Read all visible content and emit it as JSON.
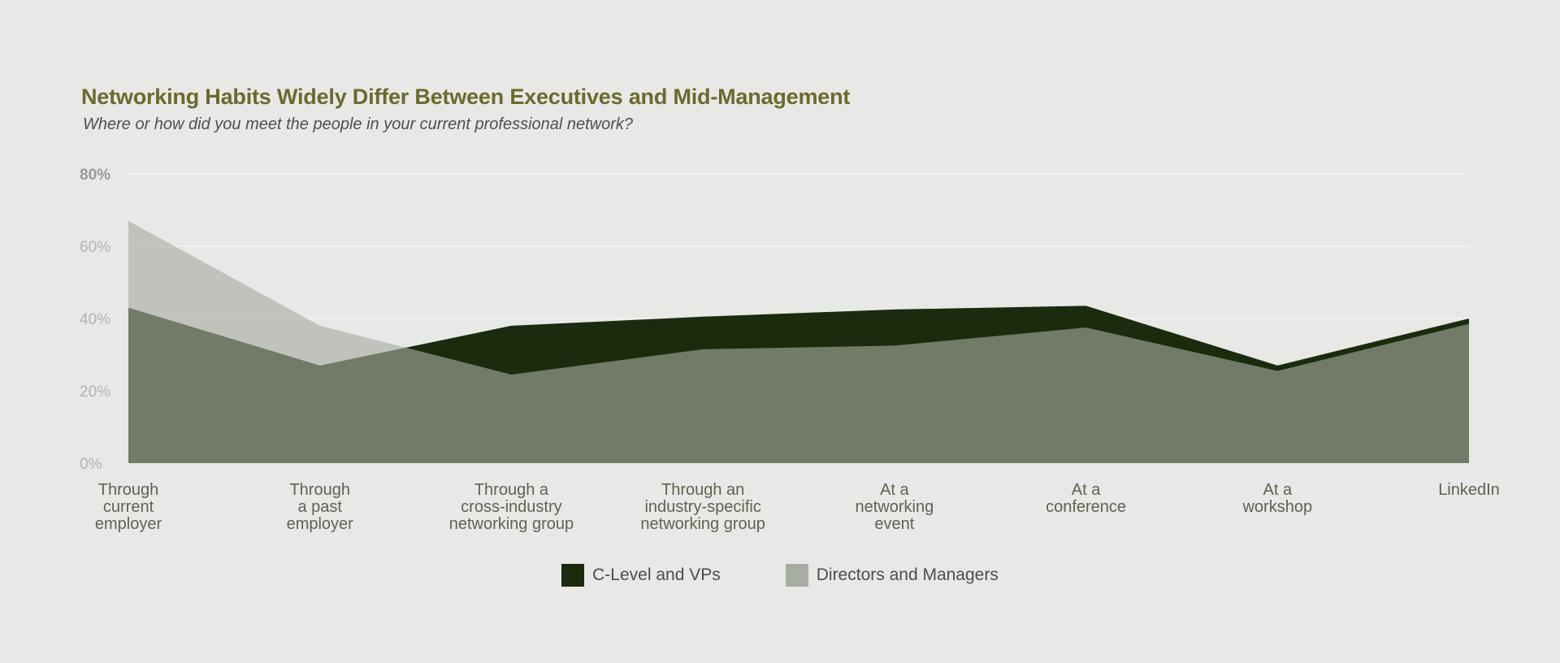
{
  "chart_data": {
    "type": "area",
    "title": "Networking Habits Widely Differ Between Executives and Mid-Management",
    "subtitle": "Where or how did you meet the people in your current professional network?",
    "categories": [
      [
        "Through",
        "current",
        "employer"
      ],
      [
        "Through",
        "a past",
        "employer"
      ],
      [
        "Through a",
        "cross-industry",
        "networking group"
      ],
      [
        "Through an",
        "industry-specific",
        "networking group"
      ],
      [
        "At a",
        "networking",
        "event"
      ],
      [
        "At a",
        "conference"
      ],
      [
        "At a",
        "workshop"
      ],
      [
        "LinkedIn"
      ]
    ],
    "series": [
      {
        "name": "C-Level and VPs",
        "color": "#1b2b0e",
        "values": [
          43,
          27,
          38,
          40.5,
          42.5,
          43.5,
          27,
          40
        ]
      },
      {
        "name": "Directors and Managers",
        "color": "#a7ada0",
        "values": [
          67,
          38,
          24.5,
          31.5,
          32.5,
          37.5,
          25.5,
          38.5
        ]
      }
    ],
    "yticks": [
      "0%",
      "20%",
      "40%",
      "60%",
      "80%"
    ],
    "ylim": [
      0,
      80
    ],
    "grid": true,
    "legend_position": "bottom-center"
  }
}
